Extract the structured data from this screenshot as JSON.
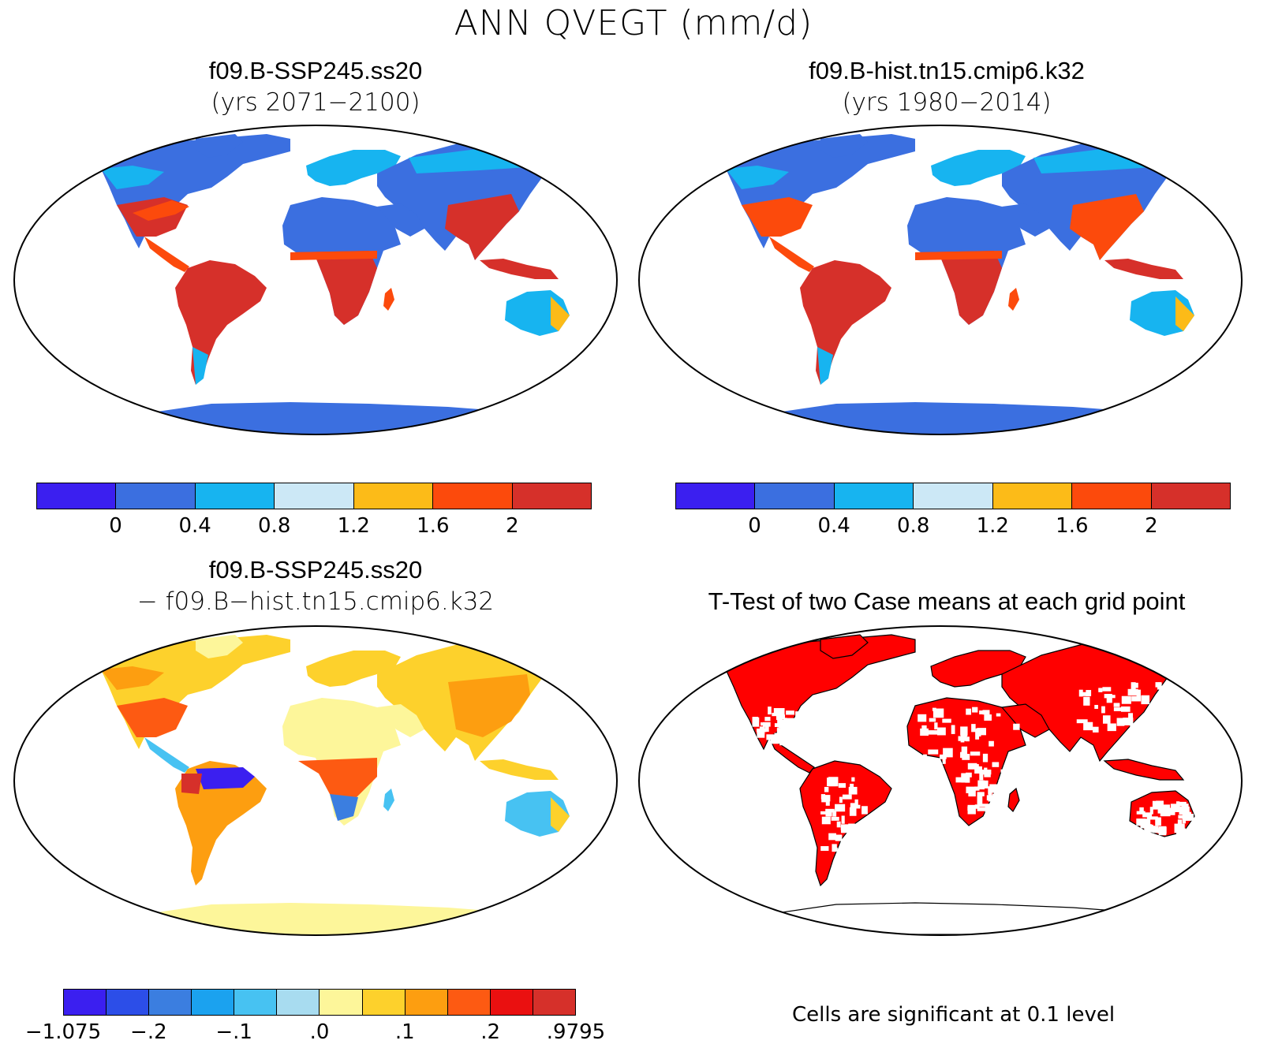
{
  "title": "ANN QVEGT (mm/d)",
  "panels": [
    {
      "title": "f09.B-SSP245.ss20",
      "subtitle": "(yrs 2071−2100)"
    },
    {
      "title": "f09.B-hist.tn15.cmip6.k32",
      "subtitle": "(yrs 1980−2014)"
    },
    {
      "title": "f09.B-SSP245.ss20",
      "subtitle": "− f09.B−hist.tn15.cmip6.k32"
    },
    {
      "title": "T-Test of two Case means at each grid point",
      "subtitle": ""
    }
  ],
  "colorbars": {
    "absolute": {
      "colors": [
        "#3b1ff0",
        "#3b6fe0",
        "#17b4f0",
        "#cce8f6",
        "#fcbb18",
        "#fc4a0c",
        "#d6302a"
      ],
      "ticks": [
        "0",
        "0.4",
        "0.8",
        "1.2",
        "1.6",
        "2"
      ]
    },
    "difference": {
      "colors": [
        "#3b1ff0",
        "#2c4ee8",
        "#3b7ee0",
        "#1ba2ef",
        "#47c2f2",
        "#a8dcf0",
        "#fdf69a",
        "#fdd12c",
        "#fd9e10",
        "#fd5a12",
        "#ea1010",
        "#d6302a"
      ],
      "ticks": [
        "−1.075",
        "−.2",
        "−.1",
        ".0",
        ".1",
        ".2",
        ".9795"
      ]
    }
  },
  "significance_note": "Cells are significant at 0.1 level",
  "significance_color": "#ff0000"
}
